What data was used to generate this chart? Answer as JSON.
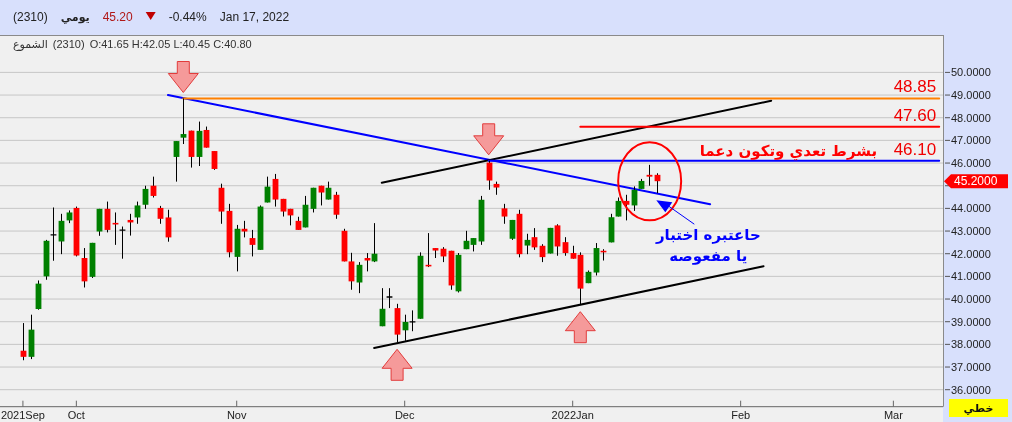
{
  "chart_data": {
    "type": "candlestick",
    "title": "(2310)",
    "subtitle": "O:41.65 H:42.05 L:40.45 C:40.80",
    "categories": [
      "2021Sep",
      null,
      null,
      null,
      null,
      null,
      null,
      "Oct",
      null,
      null,
      null,
      null,
      null,
      null,
      null,
      null,
      null,
      null,
      null,
      null,
      null,
      null,
      null,
      null,
      null,
      null,
      null,
      null,
      "Nov",
      null,
      null,
      null,
      null,
      null,
      null,
      null,
      null,
      null,
      null,
      null,
      null,
      null,
      null,
      null,
      null,
      null,
      null,
      null,
      null,
      null,
      "Dec",
      null,
      null,
      null,
      null,
      null,
      null,
      null,
      null,
      null,
      null,
      null,
      null,
      null,
      null,
      null,
      null,
      null,
      null,
      null,
      null,
      null,
      "2022Jan",
      null,
      null,
      null,
      null,
      null,
      null,
      null,
      null,
      null,
      null,
      null,
      null,
      null,
      null,
      null,
      null,
      null,
      null,
      null,
      null,
      null,
      "Feb",
      null,
      null,
      null,
      null,
      null,
      null,
      null,
      null,
      null,
      null,
      null,
      null,
      null,
      null,
      null,
      null,
      null,
      null,
      null,
      "Mar",
      null,
      null,
      null,
      null,
      null,
      null
    ],
    "ohlc": [
      [
        37.72,
        38.94,
        37.3,
        37.45
      ],
      [
        37.45,
        39.31,
        37.35,
        38.65
      ],
      [
        39.56,
        40.82,
        39.53,
        40.68
      ],
      [
        41.0,
        42.61,
        40.85,
        42.57
      ],
      [
        42.83,
        44.04,
        41.69,
        42.83
      ],
      [
        42.54,
        43.76,
        41.98,
        43.45
      ],
      [
        43.47,
        43.91,
        43.35,
        43.82
      ],
      [
        44.02,
        44.08,
        41.88,
        41.92
      ],
      [
        41.81,
        42.25,
        40.51,
        40.78
      ],
      [
        40.98,
        42.48,
        40.93,
        42.48
      ],
      [
        42.98,
        43.98,
        42.79,
        43.98
      ],
      [
        43.98,
        44.3,
        42.94,
        43.05
      ],
      [
        43.36,
        43.82,
        42.39,
        43.29
      ],
      [
        43.04,
        43.2,
        41.78,
        43.04
      ],
      [
        43.49,
        43.76,
        42.8,
        43.38
      ],
      [
        43.6,
        44.3,
        43.32,
        44.13
      ],
      [
        44.16,
        45.0,
        43.98,
        44.86
      ],
      [
        45.0,
        45.4,
        44.48,
        44.55
      ],
      [
        44.02,
        44.11,
        43.32,
        43.54
      ],
      [
        43.6,
        43.94,
        42.53,
        42.72
      ],
      [
        46.27,
        46.97,
        45.18,
        46.97
      ],
      [
        47.12,
        48.85,
        46.84,
        47.28
      ],
      [
        47.43,
        47.43,
        45.8,
        46.27
      ],
      [
        46.27,
        47.83,
        45.87,
        47.42
      ],
      [
        47.46,
        47.61,
        46.68,
        46.68
      ],
      [
        46.53,
        46.53,
        45.7,
        45.74
      ],
      [
        44.91,
        45.09,
        43.32,
        43.86
      ],
      [
        43.89,
        44.2,
        41.84,
        42.06
      ],
      [
        41.86,
        43.27,
        41.22,
        43.1
      ],
      [
        43.1,
        43.45,
        42.72,
        42.98
      ],
      [
        42.69,
        43.05,
        41.88,
        42.39
      ],
      [
        42.17,
        44.13,
        42.17,
        44.08
      ],
      [
        44.26,
        45.4,
        44.26,
        44.96
      ],
      [
        45.3,
        45.52,
        44.08,
        44.39
      ],
      [
        44.42,
        44.42,
        43.64,
        43.86
      ],
      [
        43.98,
        43.98,
        43.25,
        43.69
      ],
      [
        43.45,
        43.63,
        43.05,
        43.05
      ],
      [
        43.16,
        44.55,
        43.16,
        44.16
      ],
      [
        43.98,
        44.91,
        43.82,
        44.91
      ],
      [
        45.0,
        45.0,
        44.13,
        44.7
      ],
      [
        44.39,
        45.18,
        44.39,
        44.91
      ],
      [
        44.6,
        44.73,
        43.54,
        43.72
      ],
      [
        43.01,
        43.1,
        41.66,
        41.66
      ],
      [
        41.66,
        42.04,
        40.41,
        40.78
      ],
      [
        40.73,
        41.63,
        40.26,
        41.51
      ],
      [
        41.81,
        42.03,
        41.22,
        41.7
      ],
      [
        41.66,
        43.35,
        41.63,
        42.0
      ],
      [
        38.8,
        40.48,
        38.8,
        39.57
      ],
      [
        40.09,
        40.48,
        39.6,
        40.09
      ],
      [
        39.6,
        39.79,
        38.09,
        38.43
      ],
      [
        38.62,
        39.31,
        38.16,
        38.99
      ],
      [
        38.99,
        39.5,
        38.58,
        38.99
      ],
      [
        39.13,
        42.06,
        39.13,
        41.91
      ],
      [
        41.51,
        42.91,
        41.41,
        41.44
      ],
      [
        42.25,
        42.25,
        41.81,
        42.14
      ],
      [
        42.22,
        42.29,
        41.63,
        41.88
      ],
      [
        42.13,
        42.13,
        40.41,
        40.6
      ],
      [
        40.34,
        42.03,
        40.29,
        41.95
      ],
      [
        42.2,
        43.01,
        42.2,
        42.57
      ],
      [
        42.39,
        42.69,
        42.1,
        42.69
      ],
      [
        42.54,
        44.55,
        42.39,
        44.38
      ],
      [
        46.02,
        46.1,
        44.82,
        45.23
      ],
      [
        45.08,
        45.18,
        44.6,
        44.92
      ],
      [
        44.0,
        44.2,
        43.32,
        43.64
      ],
      [
        42.66,
        43.49,
        42.61,
        43.49
      ],
      [
        43.76,
        43.94,
        41.84,
        41.98
      ],
      [
        42.36,
        42.88,
        41.98,
        42.61
      ],
      [
        42.73,
        43.13,
        42.17,
        42.28
      ],
      [
        42.35,
        42.42,
        41.63,
        41.85
      ],
      [
        42.01,
        43.14,
        42.01,
        43.14
      ],
      [
        43.25,
        43.3,
        41.91,
        42.32
      ],
      [
        42.51,
        42.73,
        41.91,
        42.03
      ],
      [
        42.03,
        42.35,
        41.78,
        41.78
      ],
      [
        41.95,
        42.06,
        39.75,
        40.46
      ],
      [
        40.7,
        41.26,
        40.7,
        41.2
      ],
      [
        41.17,
        42.47,
        41.04,
        42.25
      ],
      [
        42.13,
        42.2,
        41.7,
        42.06
      ],
      [
        42.5,
        43.76,
        42.5,
        43.61
      ],
      [
        43.64,
        44.48,
        43.64,
        44.33
      ],
      [
        44.33,
        44.6,
        43.47,
        44.16
      ],
      [
        44.13,
        44.97,
        43.89,
        44.82
      ],
      [
        44.86,
        45.3,
        44.86,
        45.21
      ],
      [
        45.48,
        45.92,
        45.0,
        45.4
      ],
      [
        45.48,
        45.55,
        44.67,
        45.2
      ],
      null,
      null,
      null,
      null,
      null,
      null,
      null,
      null,
      null,
      null,
      null,
      null,
      null,
      null,
      null,
      null,
      null,
      null,
      null,
      null,
      null,
      null,
      null,
      null,
      null,
      null,
      null,
      null,
      null,
      null,
      null,
      null,
      null,
      null,
      null,
      null,
      null
    ],
    "colors": [
      "#ff0000",
      "#008000",
      "#008000",
      "#008000",
      "#000000",
      "#008000",
      "#008000",
      "#ff0000",
      "#ff0000",
      "#008000",
      "#008000",
      "#ff0000",
      "#ff0000",
      "#000000",
      "#ff0000",
      "#008000",
      "#008000",
      "#ff0000",
      "#ff0000",
      "#ff0000",
      "#008000",
      "#008000",
      "#ff0000",
      "#008000",
      "#ff0000",
      "#ff0000",
      "#ff0000",
      "#ff0000",
      "#008000",
      "#ff0000",
      "#ff0000",
      "#008000",
      "#008000",
      "#ff0000",
      "#ff0000",
      "#ff0000",
      "#ff0000",
      "#008000",
      "#008000",
      "#ff0000",
      "#008000",
      "#ff0000",
      "#ff0000",
      "#ff0000",
      "#008000",
      "#ff0000",
      "#008000",
      "#008000",
      "#000000",
      "#ff0000",
      "#008000",
      "#000000",
      "#008000",
      "#ff0000",
      "#ff0000",
      "#ff0000",
      "#ff0000",
      "#008000",
      "#008000",
      "#008000",
      "#008000",
      "#ff0000",
      "#ff0000",
      "#ff0000",
      "#008000",
      "#ff0000",
      "#008000",
      "#ff0000",
      "#ff0000",
      "#008000",
      "#ff0000",
      "#ff0000",
      "#ff0000",
      "#ff0000",
      "#008000",
      "#008000",
      "#ff0000",
      "#008000",
      "#008000",
      "#ff0000",
      "#008000",
      "#008000",
      "#ff0000",
      "#ff0000",
      null,
      null,
      null,
      null,
      null,
      null,
      null,
      null,
      null,
      null,
      null,
      null,
      null,
      null,
      null,
      null,
      null,
      null,
      null,
      null,
      null,
      null,
      null,
      null,
      null,
      null,
      null,
      null,
      null,
      null,
      null,
      null,
      null,
      null,
      null,
      null,
      null
    ],
    "series": [
      {
        "type": "line",
        "color": "#0000ff",
        "values": [
          null,
          null,
          null,
          null,
          null,
          null,
          null,
          null,
          null,
          null,
          null,
          null,
          null,
          null,
          null,
          null,
          null,
          null,
          null,
          49.0,
          null,
          null,
          null,
          null,
          null,
          null,
          null,
          null,
          null,
          null,
          null,
          null,
          null,
          null,
          null,
          null,
          null,
          null,
          null,
          null,
          null,
          null,
          null,
          null,
          null,
          null,
          null,
          null,
          null,
          null,
          null,
          null,
          null,
          null,
          null,
          null,
          null,
          null,
          null,
          null,
          null,
          null,
          null,
          null,
          null,
          null,
          null,
          null,
          null,
          null,
          null,
          null,
          null,
          null,
          null,
          null,
          null,
          null,
          null,
          null,
          null,
          null,
          null,
          null,
          null,
          null,
          null,
          null,
          null,
          null,
          44.18,
          null,
          null,
          null,
          null,
          null,
          null,
          null,
          null,
          null,
          null,
          null,
          null,
          null,
          null,
          null,
          null,
          null,
          null,
          null,
          null,
          null,
          null,
          null,
          null,
          null,
          null,
          null,
          null,
          null,
          null
        ]
      },
      {
        "type": "line",
        "color": "#000000",
        "values": [
          null,
          null,
          null,
          null,
          null,
          null,
          null,
          null,
          null,
          null,
          null,
          null,
          null,
          null,
          null,
          null,
          null,
          null,
          null,
          null,
          null,
          null,
          null,
          null,
          null,
          null,
          null,
          null,
          null,
          null,
          null,
          null,
          null,
          null,
          null,
          null,
          null,
          null,
          null,
          null,
          null,
          null,
          null,
          null,
          null,
          null,
          null,
          45.13,
          null,
          null,
          null,
          null,
          null,
          null,
          null,
          null,
          null,
          null,
          null,
          null,
          null,
          null,
          null,
          null,
          null,
          null,
          null,
          null,
          null,
          null,
          null,
          null,
          null,
          null,
          null,
          null,
          null,
          null,
          null,
          null,
          null,
          null,
          null,
          null,
          null,
          null,
          null,
          null,
          null,
          null,
          null,
          null,
          null,
          null,
          null,
          null,
          null,
          null,
          48.75,
          null,
          null,
          null,
          null,
          null,
          null,
          null,
          null,
          null,
          null,
          null,
          null,
          null,
          null,
          null,
          null,
          null,
          null,
          null,
          null,
          null,
          null
        ]
      },
      {
        "type": "line",
        "color": "#000000",
        "values": [
          null,
          null,
          null,
          null,
          null,
          null,
          null,
          null,
          null,
          null,
          null,
          null,
          null,
          null,
          null,
          null,
          null,
          null,
          null,
          null,
          null,
          null,
          null,
          null,
          null,
          null,
          null,
          null,
          null,
          null,
          null,
          null,
          null,
          null,
          null,
          null,
          null,
          null,
          null,
          null,
          null,
          null,
          null,
          null,
          null,
          null,
          37.84,
          null,
          null,
          null,
          null,
          null,
          null,
          null,
          null,
          null,
          null,
          null,
          null,
          null,
          null,
          null,
          null,
          null,
          null,
          null,
          null,
          null,
          null,
          null,
          null,
          null,
          null,
          null,
          null,
          null,
          null,
          null,
          null,
          null,
          null,
          null,
          null,
          null,
          null,
          null,
          null,
          null,
          null,
          null,
          null,
          null,
          null,
          null,
          null,
          null,
          null,
          41.45,
          null,
          null,
          null,
          null,
          null,
          null,
          null,
          null,
          null,
          null,
          null,
          null,
          null,
          null,
          null,
          null,
          null,
          null,
          null,
          null,
          null,
          null,
          null
        ]
      },
      {
        "type": "line",
        "color": "#ff8000",
        "values": [
          null,
          null,
          null,
          null,
          null,
          null,
          null,
          null,
          null,
          null,
          null,
          null,
          null,
          null,
          null,
          null,
          null,
          null,
          null,
          null,
          null,
          48.85,
          null,
          null,
          null,
          null,
          null,
          null,
          null,
          null,
          null,
          null,
          null,
          null,
          null,
          null,
          null,
          null,
          null,
          null,
          null,
          null,
          null,
          null,
          null,
          null,
          null,
          null,
          null,
          null,
          null,
          null,
          null,
          null,
          null,
          null,
          null,
          null,
          null,
          null,
          null,
          null,
          null,
          null,
          null,
          null,
          null,
          null,
          null,
          null,
          null,
          null,
          null,
          null,
          null,
          null,
          null,
          null,
          null,
          null,
          null,
          null,
          null,
          null,
          null,
          null,
          null,
          null,
          null,
          null,
          null,
          null,
          null,
          null,
          null,
          null,
          null,
          null,
          null,
          null,
          null,
          null,
          null,
          null,
          null,
          null,
          null,
          null,
          null,
          null,
          null,
          null,
          null,
          null,
          null,
          null,
          null,
          null,
          null,
          null,
          48.85
        ],
        "value_labels": [
          null,
          null,
          null,
          null,
          null,
          null,
          null,
          null,
          null,
          null,
          null,
          null,
          null,
          null,
          null,
          null,
          null,
          null,
          null,
          null,
          null,
          null,
          null,
          null,
          null,
          null,
          null,
          null,
          null,
          null,
          null,
          null,
          null,
          null,
          null,
          null,
          null,
          null,
          null,
          null,
          null,
          null,
          null,
          null,
          null,
          null,
          null,
          null,
          null,
          null,
          null,
          null,
          null,
          null,
          null,
          null,
          null,
          null,
          null,
          null,
          null,
          null,
          null,
          null,
          null,
          null,
          null,
          null,
          null,
          null,
          null,
          null,
          null,
          null,
          null,
          null,
          null,
          null,
          null,
          null,
          null,
          null,
          null,
          null,
          null,
          null,
          null,
          null,
          null,
          null,
          null,
          null,
          null,
          null,
          null,
          null,
          null,
          null,
          null,
          null,
          null,
          null,
          null,
          null,
          null,
          null,
          null,
          null,
          null,
          null,
          null,
          null,
          null,
          null,
          null,
          null,
          null,
          null,
          null,
          null,
          "48.85"
        ]
      },
      {
        "type": "line",
        "color": "#ff0000",
        "values": [
          null,
          null,
          null,
          null,
          null,
          null,
          null,
          null,
          null,
          null,
          null,
          null,
          null,
          null,
          null,
          null,
          null,
          null,
          null,
          null,
          null,
          null,
          null,
          null,
          null,
          null,
          null,
          null,
          null,
          null,
          null,
          null,
          null,
          null,
          null,
          null,
          null,
          null,
          null,
          null,
          null,
          null,
          null,
          null,
          null,
          null,
          null,
          null,
          null,
          null,
          null,
          null,
          null,
          null,
          null,
          null,
          null,
          null,
          null,
          null,
          null,
          null,
          null,
          null,
          null,
          null,
          null,
          null,
          null,
          null,
          null,
          null,
          null,
          47.6,
          null,
          null,
          null,
          null,
          null,
          null,
          null,
          null,
          null,
          null,
          null,
          null,
          null,
          null,
          null,
          null,
          null,
          null,
          null,
          null,
          null,
          null,
          null,
          null,
          null,
          null,
          null,
          null,
          null,
          null,
          null,
          null,
          null,
          null,
          null,
          null,
          null,
          null,
          null,
          null,
          null,
          null,
          null,
          null,
          null,
          null,
          47.6
        ],
        "value_labels": [
          null,
          null,
          null,
          null,
          null,
          null,
          null,
          null,
          null,
          null,
          null,
          null,
          null,
          null,
          null,
          null,
          null,
          null,
          null,
          null,
          null,
          null,
          null,
          null,
          null,
          null,
          null,
          null,
          null,
          null,
          null,
          null,
          null,
          null,
          null,
          null,
          null,
          null,
          null,
          null,
          null,
          null,
          null,
          null,
          null,
          null,
          null,
          null,
          null,
          null,
          null,
          null,
          null,
          null,
          null,
          null,
          null,
          null,
          null,
          null,
          null,
          null,
          null,
          null,
          null,
          null,
          null,
          null,
          null,
          null,
          null,
          null,
          null,
          null,
          null,
          null,
          null,
          null,
          null,
          null,
          null,
          null,
          null,
          null,
          null,
          null,
          null,
          null,
          null,
          null,
          null,
          null,
          null,
          null,
          null,
          null,
          null,
          null,
          null,
          null,
          null,
          null,
          null,
          null,
          null,
          null,
          null,
          null,
          null,
          null,
          null,
          null,
          null,
          null,
          null,
          null,
          null,
          null,
          null,
          null,
          "47.60"
        ]
      },
      {
        "type": "line",
        "color": "#0000ff",
        "values": [
          null,
          null,
          null,
          null,
          null,
          null,
          null,
          null,
          null,
          null,
          null,
          null,
          null,
          null,
          null,
          null,
          null,
          null,
          null,
          null,
          null,
          null,
          null,
          null,
          null,
          null,
          null,
          null,
          null,
          null,
          null,
          null,
          null,
          null,
          null,
          null,
          null,
          null,
          null,
          null,
          null,
          null,
          null,
          null,
          null,
          null,
          null,
          null,
          null,
          null,
          null,
          null,
          null,
          null,
          null,
          null,
          null,
          null,
          null,
          null,
          null,
          46.1,
          null,
          null,
          null,
          null,
          null,
          null,
          null,
          null,
          null,
          null,
          null,
          null,
          null,
          null,
          null,
          null,
          null,
          null,
          null,
          null,
          null,
          null,
          null,
          null,
          null,
          null,
          null,
          null,
          null,
          null,
          null,
          null,
          null,
          null,
          null,
          null,
          null,
          null,
          null,
          null,
          null,
          null,
          null,
          null,
          null,
          null,
          null,
          null,
          null,
          null,
          null,
          null,
          null,
          null,
          null,
          null,
          null,
          null,
          46.1
        ],
        "value_labels": [
          null,
          null,
          null,
          null,
          null,
          null,
          null,
          null,
          null,
          null,
          null,
          null,
          null,
          null,
          null,
          null,
          null,
          null,
          null,
          null,
          null,
          null,
          null,
          null,
          null,
          null,
          null,
          null,
          null,
          null,
          null,
          null,
          null,
          null,
          null,
          null,
          null,
          null,
          null,
          null,
          null,
          null,
          null,
          null,
          null,
          null,
          null,
          null,
          null,
          null,
          null,
          null,
          null,
          null,
          null,
          null,
          null,
          null,
          null,
          null,
          null,
          null,
          null,
          null,
          null,
          null,
          null,
          null,
          null,
          null,
          null,
          null,
          null,
          null,
          null,
          null,
          null,
          null,
          null,
          null,
          null,
          null,
          null,
          null,
          null,
          null,
          null,
          null,
          null,
          null,
          null,
          null,
          null,
          null,
          null,
          null,
          null,
          null,
          null,
          null,
          null,
          null,
          null,
          null,
          null,
          null,
          null,
          null,
          null,
          null,
          null,
          null,
          null,
          null,
          null,
          null,
          null,
          null,
          null,
          null,
          "46.10"
        ]
      }
    ],
    "ylim": [
      35.25,
      51.65
    ],
    "yticks": [
      {
        "value": 36,
        "label": "36.0000"
      },
      {
        "value": 37,
        "label": "37.0000"
      },
      {
        "value": 38,
        "label": "38.0000"
      },
      {
        "value": 39,
        "label": "39.0000"
      },
      {
        "value": 40,
        "label": "40.0000"
      },
      {
        "value": 41,
        "label": "41.0000"
      },
      {
        "value": 42,
        "label": "42.0000"
      },
      {
        "value": 43,
        "label": "43.0000"
      },
      {
        "value": 44,
        "label": "44.0000"
      },
      {
        "value": 45,
        "label": null
      },
      {
        "value": 46,
        "label": "46.0000"
      },
      {
        "value": 47,
        "label": "47.0000"
      },
      {
        "value": 48,
        "label": "48.0000"
      },
      {
        "value": 49,
        "label": "49.0000"
      },
      {
        "value": 50,
        "label": "50.0000"
      }
    ],
    "grid": "y",
    "annotations": [
      "يومي",
      "45.20",
      "-0.44%",
      "Jan 17, 2022",
      "الشموع",
      "(2310)",
      {
        "text": "بشرط تعدي وتكون دعما",
        "y": 46.1
      },
      "حاعتبره اختبار يا مفعوصه",
      "45.2000",
      "خطي"
    ]
  }
}
